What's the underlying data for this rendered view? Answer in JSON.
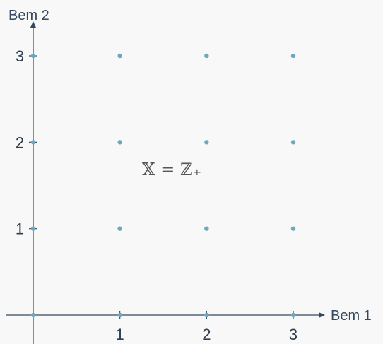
{
  "chart_data": {
    "type": "scatter",
    "title": "",
    "xlabel": "Bem 1",
    "ylabel": "Bem 2",
    "xlim": [
      0,
      3
    ],
    "ylim": [
      0,
      3
    ],
    "xticks": [
      "1",
      "2",
      "3"
    ],
    "yticks": [
      "1",
      "2",
      "3"
    ],
    "grid": false,
    "points": [
      {
        "x": 0,
        "y": 0
      },
      {
        "x": 1,
        "y": 0
      },
      {
        "x": 2,
        "y": 0
      },
      {
        "x": 3,
        "y": 0
      },
      {
        "x": 0,
        "y": 1
      },
      {
        "x": 1,
        "y": 1
      },
      {
        "x": 2,
        "y": 1
      },
      {
        "x": 3,
        "y": 1
      },
      {
        "x": 0,
        "y": 2
      },
      {
        "x": 1,
        "y": 2
      },
      {
        "x": 2,
        "y": 2
      },
      {
        "x": 3,
        "y": 2
      },
      {
        "x": 0,
        "y": 3
      },
      {
        "x": 1,
        "y": 3
      },
      {
        "x": 2,
        "y": 3
      },
      {
        "x": 3,
        "y": 3
      }
    ],
    "annotation": "𝕏 = ℤ₊",
    "point_color": "#6aa9be",
    "axis_color": "#34495e"
  }
}
